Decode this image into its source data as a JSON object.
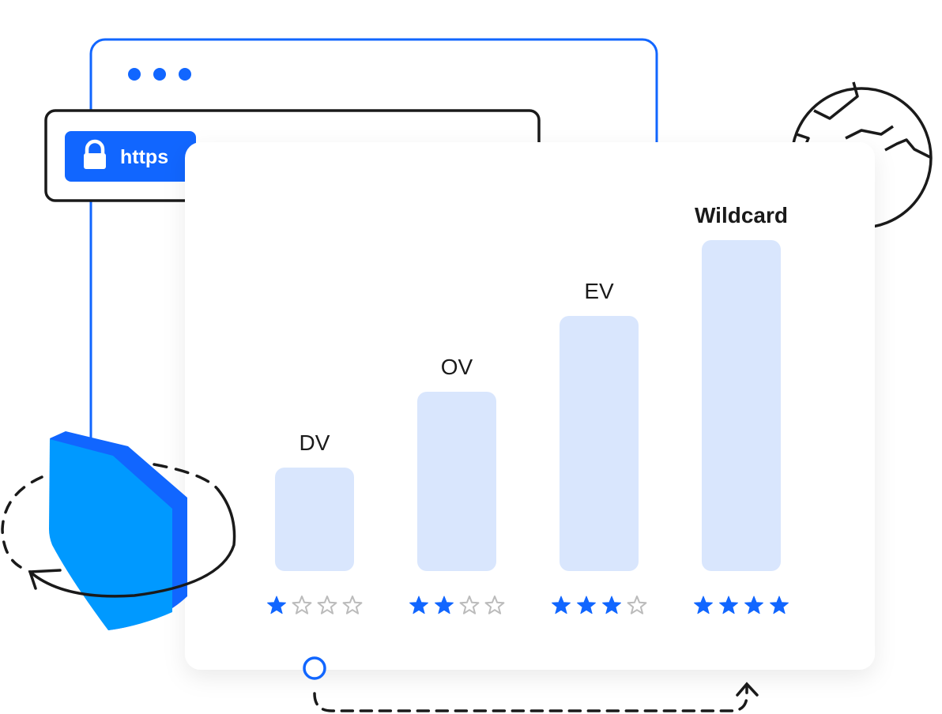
{
  "address_bar": {
    "badge_label": "https",
    "badge_icon": "lock-icon"
  },
  "colors": {
    "accent": "#1166ff",
    "shield": "#0099ff",
    "bar_fill": "#d9e6fd",
    "star_empty": "#bbbbbb",
    "outline": "#1a1a1a"
  },
  "rating_max": 4,
  "certificates": [
    {
      "label": "DV",
      "rating": 1,
      "emphasized": false
    },
    {
      "label": "OV",
      "rating": 2,
      "emphasized": false
    },
    {
      "label": "EV",
      "rating": 3,
      "emphasized": false
    },
    {
      "label": "Wildcard",
      "rating": 4,
      "emphasized": true
    }
  ]
}
